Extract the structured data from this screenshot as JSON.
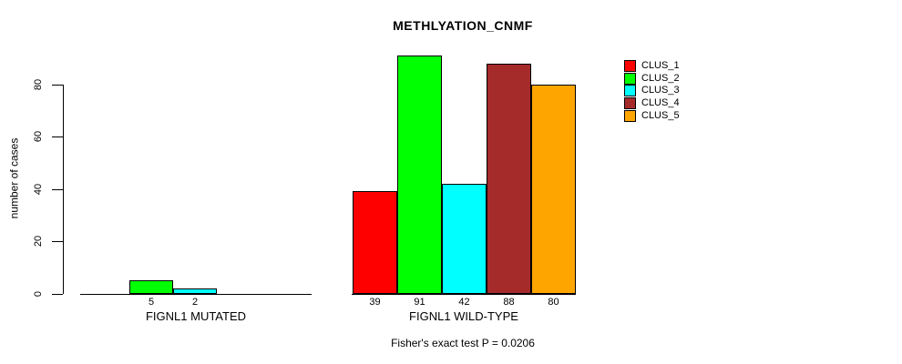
{
  "title": "METHLYATION_CNMF",
  "y_axis": {
    "label": "number of cases",
    "ticks": [
      0,
      20,
      40,
      60,
      80
    ]
  },
  "subtitle": "Fisher's exact test P = 0.0206",
  "chart_data": {
    "type": "bar",
    "title": "METHLYATION_CNMF",
    "xlabel": "",
    "ylabel": "number of cases",
    "ylim": [
      0,
      80
    ],
    "yticks": [
      0,
      20,
      40,
      60,
      80
    ],
    "grid": false,
    "legend_position": "right",
    "categories": [
      "FIGNL1 MUTATED",
      "FIGNL1 WILD-TYPE"
    ],
    "series": [
      {
        "name": "CLUS_1",
        "color": "#FF0000"
      },
      {
        "name": "CLUS_2",
        "color": "#00FF00"
      },
      {
        "name": "CLUS_3",
        "color": "#00FFFF"
      },
      {
        "name": "CLUS_4",
        "color": "#A52A2A"
      },
      {
        "name": "CLUS_5",
        "color": "#FFA500"
      }
    ],
    "groups": [
      {
        "label": "FIGNL1 MUTATED",
        "values": [
          0,
          5,
          2,
          0,
          0
        ],
        "shown_bar_labels": [
          "5",
          "2"
        ]
      },
      {
        "label": "FIGNL1 WILD-TYPE",
        "values": [
          39,
          91,
          42,
          88,
          80
        ],
        "shown_bar_labels": [
          "39",
          "91",
          "42",
          "88",
          "80"
        ]
      }
    ],
    "annotation": "Fisher's exact test P = 0.0206"
  }
}
